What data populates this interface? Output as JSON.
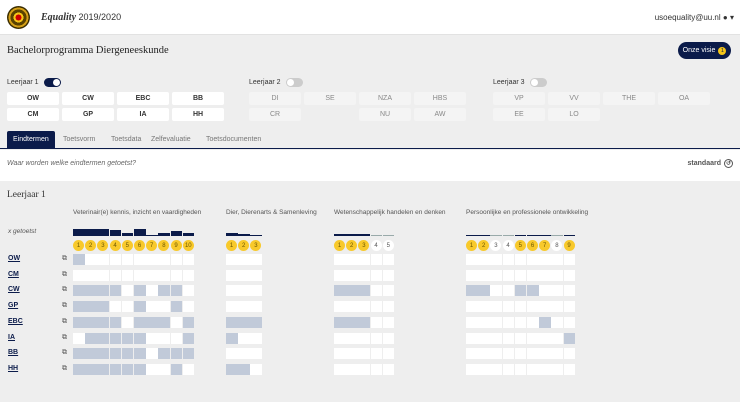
{
  "header": {
    "brand": "Equality",
    "year": "2019/2020",
    "user": "usoequality@uu.nl",
    "user_icon": "user-circle-icon"
  },
  "page": {
    "title": "Bachelorprogramma Diergeneeskunde",
    "vision_button": "Onze visie",
    "vision_badge": "1"
  },
  "years": [
    {
      "label": "Leerjaar 1",
      "enabled": true,
      "courses": [
        "OW",
        "CW",
        "EBC",
        "BB",
        "CM",
        "GP",
        "IA",
        "HH"
      ]
    },
    {
      "label": "Leerjaar 2",
      "enabled": false,
      "courses": [
        "DI",
        "SE",
        "NZA",
        "HBS",
        "CR",
        "",
        "NU",
        "AW"
      ]
    },
    {
      "label": "Leerjaar 3",
      "enabled": false,
      "courses": [
        "VP",
        "VV",
        "THE",
        "OA",
        "EE",
        "LO",
        "",
        ""
      ]
    }
  ],
  "tabs": [
    "Eindtermen",
    "Toetsvorm",
    "Toetsdata",
    "Zelfevaluatie",
    "Toetsdocumenten"
  ],
  "active_tab": "Eindtermen",
  "question": "Waar worden welke eindtermen getoetst?",
  "standard_label": "standaard",
  "section_title": "Leerjaar 1",
  "x_tested_label": "x getoetst",
  "accent_color": "#0b1b4a",
  "highlight_color": "#f8c92b",
  "rows": [
    "OW",
    "CM",
    "CW",
    "GP",
    "EBC",
    "IA",
    "BB",
    "HH"
  ],
  "groups": [
    {
      "title": "Veterinair(e) kennis, inzicht en vaardigheden",
      "terms": [
        "1",
        "2",
        "3",
        "4",
        "5",
        "6",
        "7",
        "8",
        "9",
        "10"
      ],
      "matrix": [
        "1000000000",
        "0000000000",
        "1111010110",
        "1110010010",
        "1111011101",
        "0111110001",
        "1111110111",
        "1111110010"
      ]
    },
    {
      "title": "Dier, Dierenarts & Samenleving",
      "terms": [
        "1",
        "2",
        "3"
      ],
      "matrix": [
        "000",
        "000",
        "000",
        "000",
        "111",
        "100",
        "000",
        "110"
      ]
    },
    {
      "title": "Wetenschappelijk handelen en denken",
      "terms": [
        "1",
        "2",
        "3",
        "4",
        "5"
      ],
      "matrix": [
        "00000",
        "00000",
        "11100",
        "00000",
        "11100",
        "00000",
        "00000",
        "00000"
      ]
    },
    {
      "title": "Persoonlijke en professionele ontwikkeling",
      "terms": [
        "1",
        "2",
        "3",
        "4",
        "5",
        "6",
        "7",
        "8",
        "9"
      ],
      "matrix": [
        "000000000",
        "000000000",
        "110011000",
        "000000000",
        "000000100",
        "000000001",
        "000000000",
        "000000000"
      ]
    }
  ]
}
